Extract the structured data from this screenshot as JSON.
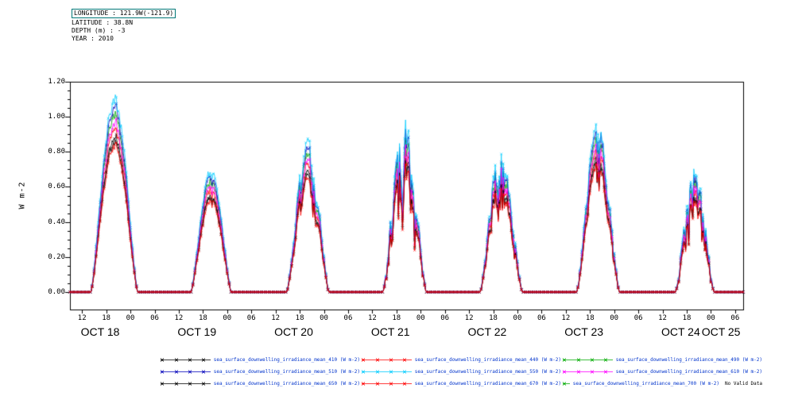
{
  "header": {
    "lines": [
      "LONGITUDE : 121.9W(-121.9)",
      "LATITUDE : 38.8N",
      "DEPTH (m) : -3",
      "YEAR : 2010"
    ]
  },
  "chart_data": {
    "type": "line",
    "title": "",
    "ylabel": "W m-2",
    "ylim": [
      -0.1,
      1.2
    ],
    "yticks": [
      0.0,
      0.2,
      0.4,
      0.6,
      0.8,
      1.0,
      1.2
    ],
    "x_range_hours": [
      9,
      176
    ],
    "x_unit": "hour of day (ticks every 6 h), 2010",
    "xticks": [
      12,
      18,
      24,
      30,
      36,
      42,
      48,
      54,
      60,
      66,
      72,
      78,
      84,
      90,
      96,
      102,
      108,
      114,
      120,
      126,
      132,
      138,
      144,
      150,
      156,
      162,
      168,
      174
    ],
    "x_tick_labels": [
      "12",
      "18",
      "00",
      "06",
      "12",
      "18",
      "00",
      "06",
      "12",
      "18",
      "00",
      "06",
      "12",
      "18",
      "00",
      "06",
      "12",
      "18",
      "00",
      "06",
      "12",
      "18",
      "00",
      "06",
      "12",
      "18",
      "00",
      "06"
    ],
    "date_labels": [
      "OCT 18",
      "OCT 19",
      "OCT 20",
      "OCT 21",
      "OCT 22",
      "OCT 23",
      "OCT 24",
      "OCT 25"
    ],
    "date_positions_hours": [
      16.5,
      40.5,
      64.5,
      88.5,
      112.5,
      136.5,
      160.5,
      170.5
    ],
    "solar_noon_hour": 20,
    "day_peaks": [
      1.12,
      0.7,
      0.86,
      0.97,
      0.85,
      0.96,
      0.7
    ],
    "day_half_width_hours": [
      5.8,
      5.0,
      5.2,
      5.4,
      5.2,
      5.3,
      4.8
    ],
    "day_cloudiness": [
      0.06,
      0.12,
      0.3,
      0.55,
      0.45,
      0.35,
      0.55
    ],
    "seed": 7,
    "grid": false,
    "legend_position": "bottom",
    "legend_text_color": "#0033cc",
    "series": [
      {
        "label": "sea_surface_downwelling_irradiance_mean_410 (W m-2)",
        "color": "#000000",
        "scale": 0.8
      },
      {
        "label": "sea_surface_downwelling_irradiance_mean_440 (W m-2)",
        "color": "#ff0000",
        "scale": 0.85
      },
      {
        "label": "sea_surface_downwelling_irradiance_mean_490 (W m-2)",
        "color": "#00aa00",
        "scale": 0.92
      },
      {
        "label": "sea_surface_downwelling_irradiance_mean_510 (W m-2)",
        "color": "#0000bb",
        "scale": 0.96
      },
      {
        "label": "sea_surface_downwelling_irradiance_mean_550 (W m-2)",
        "color": "#00ccff",
        "scale": 1.0
      },
      {
        "label": "sea_surface_downwelling_irradiance_mean_610 (W m-2)",
        "color": "#ff00ff",
        "scale": 0.88
      },
      {
        "label": "sea_surface_downwelling_irradiance_mean_650 (W m-2)",
        "color": "#000000",
        "scale": 0.78
      },
      {
        "label": "sea_surface_downwelling_irradiance_mean_670 (W m-2)",
        "color": "#ff0000",
        "scale": 0.76
      },
      {
        "label": "sea_surface_downwelling_irradiance_mean_700 (W m-2)",
        "color": "#00aa00",
        "scale": 0,
        "no_data": true,
        "note": "No Valid Data"
      }
    ]
  }
}
